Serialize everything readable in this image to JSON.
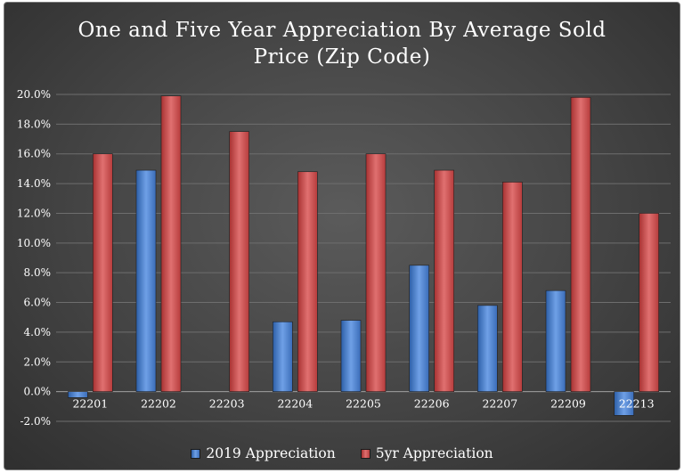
{
  "chart_data": {
    "type": "bar",
    "title": [
      "One and Five Year Appreciation By Average Sold",
      "Price (Zip Code)"
    ],
    "categories": [
      "22201",
      "22202",
      "22203",
      "22204",
      "22205",
      "22206",
      "22207",
      "22209",
      "22213"
    ],
    "series": [
      {
        "name": "2019 Appreciation",
        "color": "#4a7fcf",
        "values": [
          -0.4,
          14.9,
          0.0,
          4.7,
          4.8,
          8.5,
          5.8,
          6.8,
          -1.6
        ]
      },
      {
        "name": "5yr Appreciation",
        "color": "#cf4a4a",
        "values": [
          16.0,
          19.9,
          17.5,
          14.8,
          16.0,
          14.9,
          14.1,
          19.8,
          12.0
        ]
      }
    ],
    "y_ticks": [
      "20.0%",
      "18.0%",
      "16.0%",
      "14.0%",
      "12.0%",
      "10.0%",
      "8.0%",
      "6.0%",
      "4.0%",
      "2.0%",
      "0.0%",
      "-2.0%"
    ],
    "ylim": [
      -2,
      20
    ],
    "grid": true,
    "legend_position": "bottom"
  }
}
